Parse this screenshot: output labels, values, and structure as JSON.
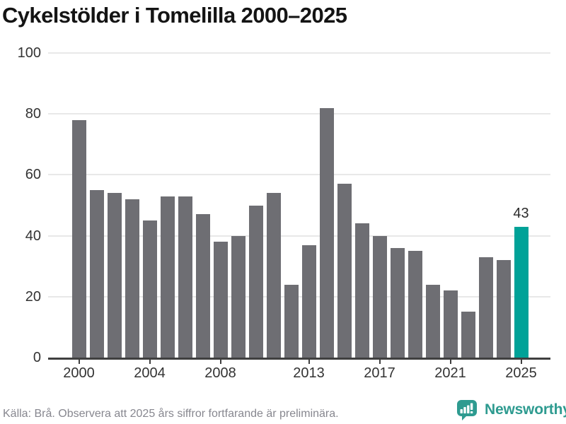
{
  "chart_data": {
    "type": "bar",
    "title": "Cykelstölder i Tomelilla 2000–2025",
    "categories": [
      2000,
      2001,
      2002,
      2003,
      2004,
      2005,
      2006,
      2007,
      2008,
      2009,
      2010,
      2011,
      2012,
      2013,
      2014,
      2015,
      2016,
      2017,
      2018,
      2019,
      2020,
      2021,
      2022,
      2023,
      2024,
      2025
    ],
    "values": [
      78,
      55,
      54,
      52,
      45,
      53,
      53,
      47,
      38,
      40,
      50,
      54,
      24,
      37,
      82,
      57,
      44,
      40,
      36,
      35,
      24,
      22,
      15,
      33,
      32,
      43
    ],
    "highlight_category": 2025,
    "annotation": {
      "category": 2025,
      "text": "43"
    },
    "xlabel": "",
    "ylabel": "",
    "ylim": [
      0,
      100
    ],
    "yticks": [
      0,
      20,
      40,
      60,
      80,
      100
    ],
    "xticks": [
      2000,
      2004,
      2008,
      2013,
      2017,
      2021,
      2025
    ],
    "grid": true,
    "legend": false,
    "colors": {
      "bar": "#6e6e73",
      "highlight": "#00a298",
      "gridline": "#e8e8e8",
      "axis": "#3f3f3f",
      "tick_label": "#333333",
      "annotation": "#2b2b2b"
    }
  },
  "footer": {
    "source": "Källa: Brå. Observera att 2025 års siffror fortfarande är preliminära.",
    "brand": "Newsworthy",
    "brand_color": "#2e9b90"
  }
}
